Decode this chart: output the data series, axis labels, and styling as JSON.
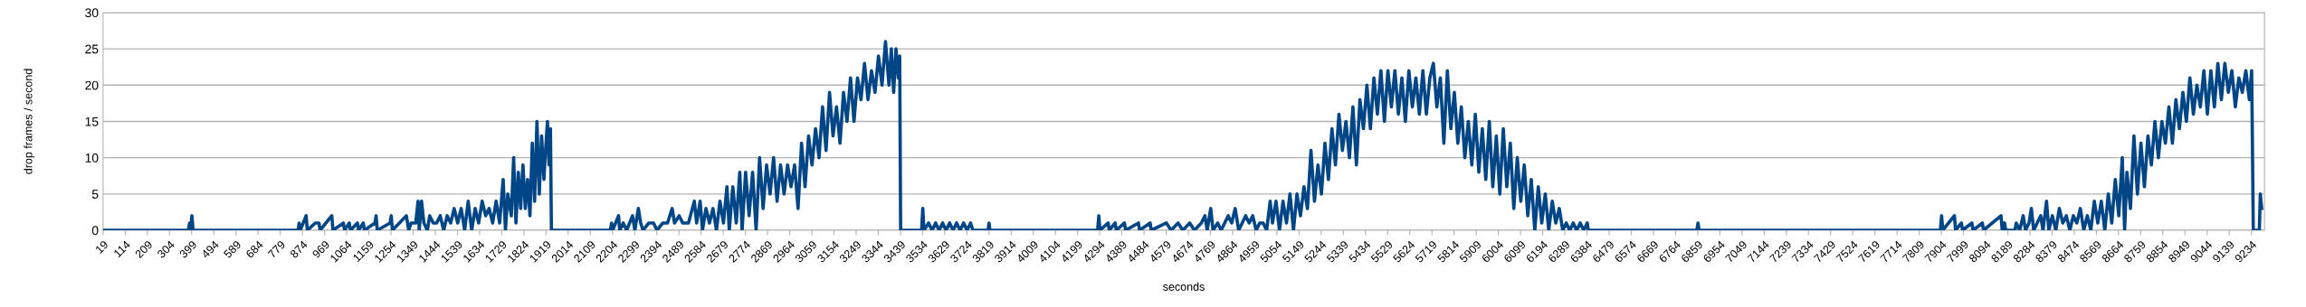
{
  "chart_data": {
    "type": "line",
    "xlabel": "seconds",
    "ylabel": "drop frames / second",
    "series": [
      {
        "color": "#004586",
        "x": [
          19,
          385,
          390,
          395,
          400,
          405,
          855,
          860,
          865,
          890,
          895,
          930,
          945,
          950,
          1000,
          1005,
          1050,
          1055,
          1075,
          1080,
          1110,
          1115,
          1135,
          1140,
          1185,
          1190,
          1195,
          1250,
          1255,
          1260,
          1320,
          1330,
          1340,
          1360,
          1370,
          1375,
          1385,
          1395,
          1410,
          1420,
          1435,
          1450,
          1465,
          1480,
          1495,
          1510,
          1525,
          1540,
          1555,
          1570,
          1585,
          1600,
          1615,
          1630,
          1645,
          1660,
          1675,
          1690,
          1705,
          1720,
          1735,
          1745,
          1755,
          1770,
          1780,
          1790,
          1800,
          1810,
          1820,
          1830,
          1840,
          1850,
          1860,
          1870,
          1880,
          1890,
          1900,
          1910,
          1915,
          1925,
          1932,
          1938,
          1942,
          2195,
          2200,
          2205,
          2230,
          2235,
          2250,
          2265,
          2290,
          2300,
          2315,
          2325,
          2335,
          2360,
          2380,
          2395,
          2420,
          2440,
          2460,
          2470,
          2490,
          2505,
          2530,
          2555,
          2565,
          2580,
          2590,
          2605,
          2620,
          2635,
          2650,
          2665,
          2680,
          2695,
          2705,
          2720,
          2735,
          2750,
          2760,
          2775,
          2790,
          2805,
          2820,
          2835,
          2850,
          2865,
          2880,
          2895,
          2910,
          2925,
          2940,
          2955,
          2970,
          2985,
          3000,
          3015,
          3030,
          3045,
          3060,
          3075,
          3090,
          3105,
          3120,
          3135,
          3150,
          3165,
          3180,
          3195,
          3210,
          3225,
          3240,
          3255,
          3270,
          3285,
          3300,
          3315,
          3330,
          3345,
          3360,
          3375,
          3390,
          3400,
          3410,
          3420,
          3430,
          3436,
          3440,
          3530,
          3535,
          3540,
          3560,
          3575,
          3590,
          3605,
          3620,
          3635,
          3650,
          3665,
          3680,
          3695,
          3710,
          3725,
          3740,
          3750,
          3815,
          3819,
          3823,
          4285,
          4290,
          4295,
          4330,
          4335,
          4360,
          4365,
          4400,
          4405,
          4460,
          4465,
          4510,
          4515,
          4580,
          4600,
          4630,
          4650,
          4680,
          4700,
          4730,
          4745,
          4755,
          4770,
          4780,
          4800,
          4815,
          4830,
          4845,
          4860,
          4875,
          4890,
          4905,
          4920,
          4935,
          4950,
          4965,
          4980,
          4995,
          5010,
          5025,
          5035,
          5050,
          5065,
          5080,
          5095,
          5110,
          5125,
          5140,
          5155,
          5170,
          5185,
          5200,
          5215,
          5230,
          5245,
          5260,
          5275,
          5290,
          5305,
          5320,
          5335,
          5350,
          5365,
          5380,
          5395,
          5410,
          5425,
          5440,
          5455,
          5470,
          5485,
          5500,
          5515,
          5530,
          5545,
          5560,
          5575,
          5590,
          5605,
          5620,
          5635,
          5650,
          5665,
          5680,
          5695,
          5710,
          5725,
          5740,
          5755,
          5770,
          5785,
          5800,
          5815,
          5830,
          5845,
          5860,
          5875,
          5890,
          5905,
          5920,
          5935,
          5950,
          5965,
          5980,
          5995,
          6010,
          6025,
          6040,
          6055,
          6070,
          6085,
          6100,
          6115,
          6130,
          6145,
          6160,
          6175,
          6190,
          6205,
          6220,
          6235,
          6250,
          6265,
          6280,
          6295,
          6310,
          6325,
          6340,
          6355,
          6370,
          6385,
          6390,
          6855,
          6860,
          6865,
          7900,
          7905,
          7910,
          7960,
          7965,
          7990,
          7995,
          8035,
          8040,
          8080,
          8085,
          8160,
          8165,
          8175,
          8180,
          8220,
          8225,
          8240,
          8255,
          8265,
          8280,
          8290,
          8300,
          8315,
          8330,
          8340,
          8355,
          8365,
          8380,
          8395,
          8410,
          8425,
          8440,
          8455,
          8470,
          8485,
          8500,
          8515,
          8530,
          8545,
          8560,
          8575,
          8590,
          8605,
          8620,
          8635,
          8650,
          8665,
          8680,
          8690,
          8700,
          8715,
          8730,
          8745,
          8760,
          8775,
          8790,
          8805,
          8820,
          8835,
          8850,
          8865,
          8880,
          8895,
          8910,
          8925,
          8940,
          8955,
          8970,
          8985,
          9000,
          9015,
          9030,
          9045,
          9060,
          9075,
          9090,
          9105,
          9120,
          9135,
          9150,
          9165,
          9180,
          9195,
          9210,
          9225,
          9235,
          9242,
          9268,
          9272,
          9278
        ],
        "values": [
          0,
          0,
          1,
          0,
          2,
          0,
          0,
          1,
          0,
          2,
          0,
          1,
          1,
          0,
          2,
          0,
          1,
          0,
          1,
          0,
          1,
          0,
          1,
          0,
          1,
          2,
          0,
          1,
          2,
          0,
          2,
          0,
          1,
          1,
          4,
          0,
          4,
          1,
          0,
          2,
          1,
          1,
          2,
          0,
          2,
          1,
          3,
          1,
          3,
          0,
          4,
          0,
          3,
          1,
          4,
          2,
          3,
          1,
          4,
          1,
          7,
          0,
          5,
          2,
          10,
          1,
          8,
          3,
          9,
          3,
          7,
          2,
          12,
          4,
          15,
          5,
          13,
          7,
          10,
          15,
          9,
          14,
          0,
          0,
          1,
          0,
          2,
          0,
          1,
          0,
          2,
          0,
          3,
          1,
          0,
          1,
          1,
          0,
          1,
          1,
          3,
          1,
          2,
          1,
          1,
          4,
          1,
          4,
          0,
          3,
          1,
          3,
          0,
          4,
          1,
          6,
          0,
          6,
          1,
          8,
          0,
          8,
          2,
          8,
          0,
          10,
          3,
          9,
          5,
          10,
          4,
          9,
          5,
          9,
          6,
          9,
          3,
          12,
          6,
          13,
          9,
          14,
          10,
          17,
          11,
          19,
          13,
          17,
          12,
          19,
          15,
          21,
          15,
          21,
          18,
          23,
          18,
          22,
          19,
          24,
          20,
          26,
          20,
          25,
          19,
          25,
          21,
          24,
          0,
          0,
          3,
          0,
          1,
          0,
          1,
          0,
          1,
          0,
          1,
          0,
          1,
          0,
          1,
          0,
          1,
          0,
          0,
          1,
          0,
          0,
          2,
          0,
          1,
          0,
          1,
          0,
          1,
          0,
          1,
          0,
          1,
          0,
          1,
          0,
          1,
          0,
          1,
          0,
          1,
          2,
          0,
          3,
          0,
          1,
          0,
          1,
          2,
          1,
          3,
          0,
          1,
          2,
          1,
          2,
          0,
          1,
          1,
          0,
          4,
          1,
          4,
          0,
          4,
          1,
          5,
          0,
          5,
          2,
          6,
          3,
          11,
          4,
          9,
          5,
          12,
          7,
          14,
          9,
          16,
          11,
          15,
          10,
          17,
          9,
          18,
          14,
          20,
          14,
          21,
          16,
          22,
          15,
          22,
          17,
          22,
          16,
          21,
          15,
          22,
          17,
          21,
          16,
          22,
          16,
          21,
          23,
          17,
          21,
          12,
          22,
          14,
          19,
          12,
          17,
          10,
          15,
          9,
          16,
          8,
          14,
          7,
          15,
          6,
          13,
          5,
          14,
          6,
          12,
          3,
          10,
          4,
          9,
          2,
          7,
          0,
          6,
          1,
          5,
          0,
          4,
          1,
          3,
          0,
          1,
          0,
          1,
          0,
          1,
          0,
          1,
          0,
          0,
          1,
          0,
          0,
          2,
          0,
          2,
          0,
          1,
          0,
          1,
          0,
          1,
          0,
          2,
          0,
          1,
          0,
          0,
          1,
          0,
          2,
          0,
          1,
          3,
          0,
          1,
          2,
          0,
          4,
          0,
          2,
          0,
          3,
          1,
          2,
          0,
          2,
          1,
          3,
          0,
          2,
          0,
          4,
          1,
          4,
          0,
          5,
          1,
          7,
          2,
          10,
          0,
          8,
          3,
          13,
          5,
          12,
          6,
          13,
          9,
          15,
          10,
          15,
          12,
          17,
          12,
          18,
          14,
          19,
          15,
          21,
          16,
          20,
          17,
          22,
          16,
          22,
          17,
          23,
          18,
          23,
          19,
          22,
          17,
          21,
          19,
          22,
          18,
          22,
          0,
          0,
          5,
          3
        ]
      }
    ],
    "xlim": [
      19,
      9290
    ],
    "ylim": [
      0,
      30
    ],
    "yticks": [
      0,
      5,
      10,
      15,
      20,
      25,
      30
    ],
    "xticks": [
      19,
      114,
      209,
      304,
      399,
      494,
      589,
      684,
      779,
      874,
      969,
      1064,
      1159,
      1254,
      1349,
      1444,
      1539,
      1634,
      1729,
      1824,
      1919,
      2014,
      2109,
      2204,
      2299,
      2394,
      2489,
      2584,
      2679,
      2774,
      2869,
      2964,
      3059,
      3154,
      3249,
      3344,
      3439,
      3534,
      3629,
      3724,
      3819,
      3914,
      4009,
      4104,
      4199,
      4294,
      4389,
      4484,
      4579,
      4674,
      4769,
      4864,
      4959,
      5054,
      5149,
      5244,
      5339,
      5434,
      5529,
      5624,
      5719,
      5814,
      5909,
      6004,
      6099,
      6194,
      6289,
      6384,
      6479,
      6574,
      6669,
      6764,
      6859,
      6954,
      7049,
      7144,
      7239,
      7334,
      7429,
      7524,
      7619,
      7714,
      7809,
      7904,
      7999,
      8094,
      8189,
      8284,
      8379,
      8474,
      8569,
      8664,
      8759,
      8854,
      8949,
      9044,
      9139,
      9234
    ],
    "grid": "y",
    "marker": "none",
    "line_style": "solid"
  }
}
